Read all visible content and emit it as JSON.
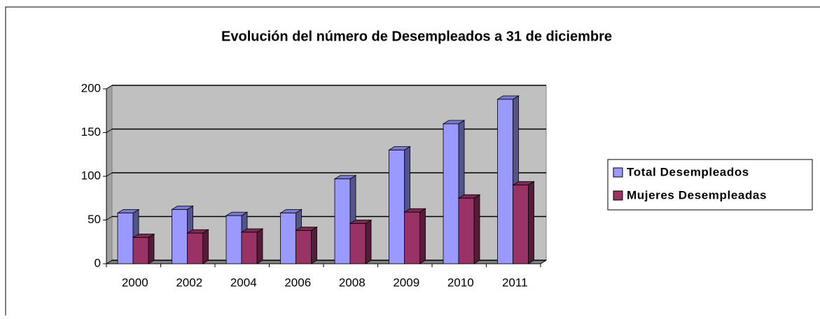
{
  "chart_data": {
    "type": "bar",
    "title": "Evolución del número de Desempleados a 31 de diciembre",
    "categories": [
      "2000",
      "2002",
      "2004",
      "2006",
      "2008",
      "2009",
      "2010",
      "2011"
    ],
    "series": [
      {
        "name": "Total Desempleados",
        "color": "#9999ff",
        "values": [
          58,
          62,
          55,
          58,
          97,
          130,
          160,
          188
        ]
      },
      {
        "name": "Mujeres Desempleadas",
        "color": "#993366",
        "values": [
          30,
          35,
          36,
          38,
          46,
          59,
          75,
          90
        ]
      }
    ],
    "ylim": [
      0,
      200
    ],
    "yticks": [
      0,
      50,
      100,
      150,
      200
    ],
    "grid": true,
    "legend": "right"
  }
}
